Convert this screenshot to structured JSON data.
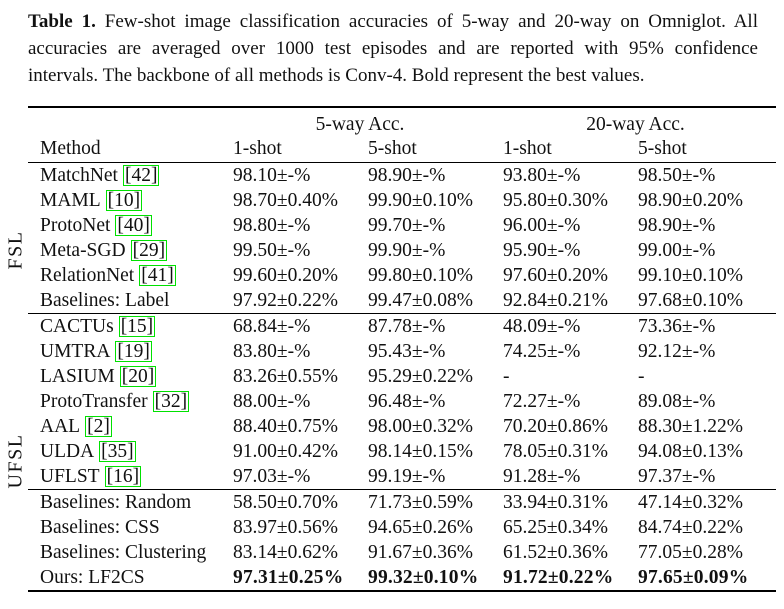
{
  "caption": {
    "label": "Table 1.",
    "line1": "Few-shot image classification accuracies of 5-way and 20-way on Omniglot. All",
    "line2": "accuracies are averaged over 1000 test episodes and are reported with 95% confidence",
    "line3": "intervals. The backbone of all methods is Conv-4. Bold represent the best values."
  },
  "table": {
    "cite_border_color": "#00e100",
    "col_groups": [
      "5-way Acc.",
      "20-way Acc."
    ],
    "headers": [
      "Method",
      "1-shot",
      "5-shot",
      "1-shot",
      "5-shot"
    ],
    "groups": [
      {
        "label": "FSL",
        "rows": [
          {
            "method": "MatchNet",
            "cite": "[42]",
            "bold": false,
            "values": [
              "98.10±-%",
              "98.90±-%",
              "93.80±-%",
              "98.50±-%"
            ]
          },
          {
            "method": "MAML",
            "cite": "[10]",
            "bold": false,
            "values": [
              "98.70±0.40%",
              "99.90±0.10%",
              "95.80±0.30%",
              "98.90±0.20%"
            ]
          },
          {
            "method": "ProtoNet",
            "cite": "[40]",
            "bold": false,
            "values": [
              "98.80±-%",
              "99.70±-%",
              "96.00±-%",
              "98.90±-%"
            ]
          },
          {
            "method": "Meta-SGD",
            "cite": "[29]",
            "bold": false,
            "values": [
              "99.50±-%",
              "99.90±-%",
              "95.90±-%",
              "99.00±-%"
            ]
          },
          {
            "method": "RelationNet",
            "cite": "[41]",
            "bold": false,
            "values": [
              "99.60±0.20%",
              "99.80±0.10%",
              "97.60±0.20%",
              "99.10±0.10%"
            ]
          },
          {
            "method": "Baselines: Label",
            "cite": "",
            "bold": false,
            "values": [
              "97.92±0.22%",
              "99.47±0.08%",
              "92.84±0.21%",
              "97.68±0.10%"
            ]
          }
        ]
      },
      {
        "label": "UFSL",
        "rows": [
          {
            "method": "CACTUs",
            "cite": "[15]",
            "bold": false,
            "values": [
              "68.84±-%",
              "87.78±-%",
              "48.09±-%",
              "73.36±-%"
            ]
          },
          {
            "method": "UMTRA",
            "cite": "[19]",
            "bold": false,
            "values": [
              "83.80±-%",
              "95.43±-%",
              "74.25±-%",
              "92.12±-%"
            ]
          },
          {
            "method": "LASIUM",
            "cite": "[20]",
            "bold": false,
            "values": [
              "83.26±0.55%",
              "95.29±0.22%",
              "-",
              "-"
            ]
          },
          {
            "method": "ProtoTransfer",
            "cite": "[32]",
            "bold": false,
            "values": [
              "88.00±-%",
              "96.48±-%",
              "72.27±-%",
              "89.08±-%"
            ]
          },
          {
            "method": "AAL",
            "cite": "[2]",
            "bold": false,
            "values": [
              "88.40±0.75%",
              "98.00±0.32%",
              "70.20±0.86%",
              "88.30±1.22%"
            ]
          },
          {
            "method": "ULDA",
            "cite": "[35]",
            "bold": false,
            "values": [
              "91.00±0.42%",
              "98.14±0.15%",
              "78.05±0.31%",
              "94.08±0.13%"
            ]
          },
          {
            "method": "UFLST",
            "cite": "[16]",
            "bold": false,
            "values": [
              "97.03±-%",
              "99.19±-%",
              "91.28±-%",
              "97.37±-%"
            ]
          }
        ]
      },
      {
        "label": "",
        "rows": [
          {
            "method": "Baselines: Random",
            "cite": "",
            "bold": false,
            "values": [
              "58.50±0.70%",
              "71.73±0.59%",
              "33.94±0.31%",
              "47.14±0.32%"
            ]
          },
          {
            "method": "Baselines: CSS",
            "cite": "",
            "bold": false,
            "values": [
              "83.97±0.56%",
              "94.65±0.26%",
              "65.25±0.34%",
              "84.74±0.22%"
            ]
          },
          {
            "method": "Baselines: Clustering",
            "cite": "",
            "bold": false,
            "values": [
              "83.14±0.62%",
              "91.67±0.36%",
              "61.52±0.36%",
              "77.05±0.28%"
            ]
          },
          {
            "method": "Ours: LF2CS",
            "cite": "",
            "bold": true,
            "values": [
              "97.31±0.25%",
              "99.32±0.10%",
              "91.72±0.22%",
              "97.65±0.09%"
            ]
          }
        ]
      }
    ]
  }
}
